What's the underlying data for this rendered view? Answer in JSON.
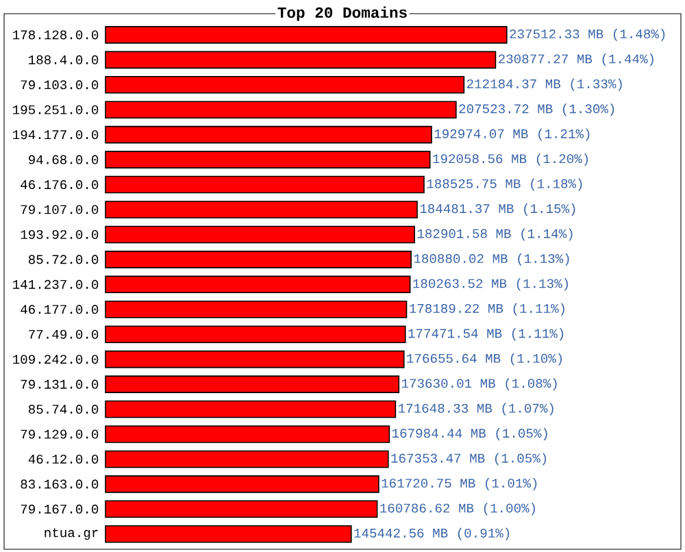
{
  "chart_data": {
    "type": "bar",
    "orientation": "horizontal",
    "title": "Top 20 Domains",
    "color": "#ff0000",
    "categories": [
      "178.128.0.0",
      "188.4.0.0",
      "79.103.0.0",
      "195.251.0.0",
      "194.177.0.0",
      "94.68.0.0",
      "46.176.0.0",
      "79.107.0.0",
      "193.92.0.0",
      "85.72.0.0",
      "141.237.0.0",
      "46.177.0.0",
      "77.49.0.0",
      "109.242.0.0",
      "79.131.0.0",
      "85.74.0.0",
      "79.129.0.0",
      "46.12.0.0",
      "83.163.0.0",
      "79.167.0.0",
      "ntua.gr"
    ],
    "values": [
      237512.33,
      230877.27,
      212184.37,
      207523.72,
      192974.07,
      192058.56,
      188525.75,
      184481.37,
      182901.58,
      180880.02,
      180263.52,
      178189.22,
      177471.54,
      176655.64,
      173630.01,
      171648.33,
      167984.44,
      167353.47,
      161720.75,
      160786.62,
      145442.56
    ],
    "value_labels": [
      "237512.33 MB (1.48%)",
      "230877.27 MB (1.44%)",
      "212184.37 MB (1.33%)",
      "207523.72 MB (1.30%)",
      "192974.07 MB (1.21%)",
      "192058.56 MB (1.20%)",
      "188525.75 MB (1.18%)",
      "184481.37 MB (1.15%)",
      "182901.58 MB (1.14%)",
      "180880.02 MB (1.13%)",
      "180263.52 MB (1.13%)",
      "178189.22 MB (1.11%)",
      "177471.54 MB (1.11%)",
      "176655.64 MB (1.10%)",
      "173630.01 MB (1.08%)",
      "171648.33 MB (1.07%)",
      "167984.44 MB (1.05%)",
      "167353.47 MB (1.05%)",
      "161720.75 MB (1.01%)",
      "160786.62 MB (1.00%)",
      "145442.56 MB (0.91%)"
    ]
  }
}
